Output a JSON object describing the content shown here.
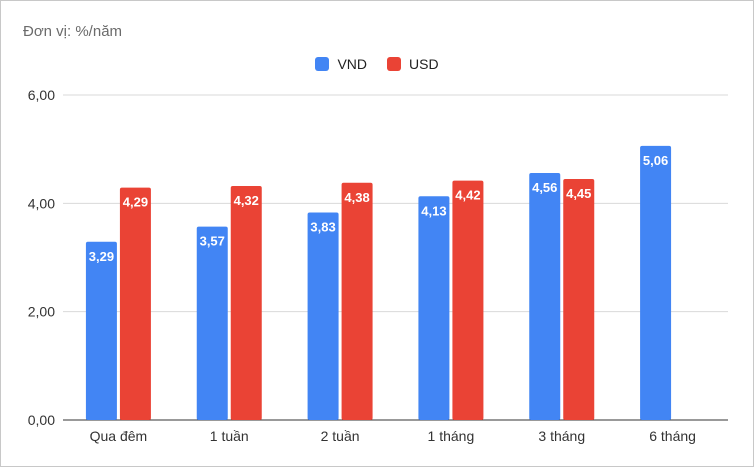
{
  "unit_label": "Đơn vị: %/năm",
  "colors": {
    "VND": "#4285f4",
    "USD": "#ea4335",
    "grid": "#d9d9d9",
    "axis": "#333333"
  },
  "chart_data": {
    "type": "bar",
    "title": "",
    "xlabel": "",
    "ylabel": "",
    "unit": "Đơn vị: %/năm",
    "categories": [
      "Qua đêm",
      "1 tuần",
      "2 tuần",
      "1 tháng",
      "3 tháng",
      "6 tháng"
    ],
    "series": [
      {
        "name": "VND",
        "values": [
          3.29,
          3.57,
          3.83,
          4.13,
          4.56,
          5.06
        ],
        "labels": [
          "3,29",
          "3,57",
          "3,83",
          "4,13",
          "4,56",
          "5,06"
        ]
      },
      {
        "name": "USD",
        "values": [
          4.29,
          4.32,
          4.38,
          4.42,
          4.45,
          null
        ],
        "labels": [
          "4,29",
          "4,32",
          "4,38",
          "4,42",
          "4,45",
          ""
        ]
      }
    ],
    "ylim": [
      0,
      6
    ],
    "yticks": [
      0,
      2,
      4,
      6
    ],
    "ytick_labels": [
      "0,00",
      "2,00",
      "4,00",
      "6,00"
    ],
    "grid": true,
    "legend": "top-center"
  }
}
